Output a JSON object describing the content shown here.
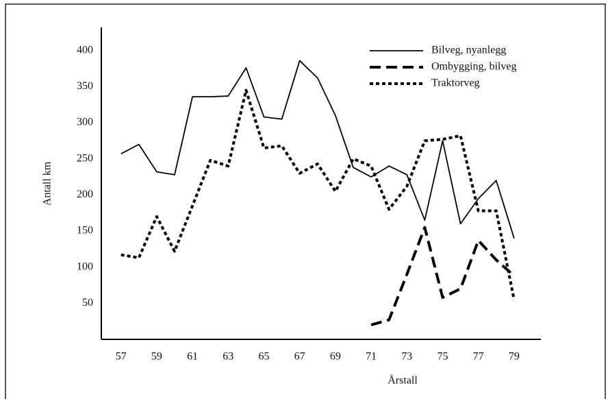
{
  "chart_data": {
    "type": "line",
    "xlabel": "Årstall",
    "ylabel": "Antall km",
    "x": [
      57,
      58,
      59,
      60,
      61,
      62,
      63,
      64,
      65,
      66,
      67,
      68,
      69,
      70,
      71,
      72,
      73,
      74,
      75,
      76,
      77,
      78,
      79
    ],
    "series": [
      {
        "name": "Bilveg, nyanlegg",
        "color": "#000000",
        "style": "solid",
        "values": [
          257,
          270,
          232,
          228,
          336,
          336,
          337,
          376,
          308,
          305,
          386,
          362,
          310,
          238,
          225,
          240,
          228,
          165,
          275,
          160,
          195,
          220,
          140
        ]
      },
      {
        "name": "Ombygging, bilveg",
        "color": "#000000",
        "style": "dashed",
        "values": [
          null,
          null,
          null,
          null,
          null,
          null,
          null,
          null,
          null,
          null,
          null,
          null,
          null,
          null,
          20,
          27,
          90,
          155,
          58,
          70,
          137,
          110,
          88
        ]
      },
      {
        "name": "Traktorveg",
        "color": "#000000",
        "style": "dotted",
        "values": [
          117,
          113,
          170,
          122,
          185,
          248,
          240,
          345,
          265,
          268,
          230,
          243,
          205,
          250,
          240,
          180,
          212,
          275,
          277,
          282,
          178,
          178,
          55
        ]
      }
    ],
    "xlim": [
      55.9,
      80.5
    ],
    "ylim": [
      0,
      432
    ],
    "xticks": [
      57,
      59,
      61,
      63,
      65,
      67,
      69,
      71,
      73,
      75,
      77,
      79
    ],
    "yticks": [
      50,
      100,
      150,
      200,
      250,
      300,
      350,
      400
    ],
    "grid": false,
    "legend": "upper right"
  }
}
